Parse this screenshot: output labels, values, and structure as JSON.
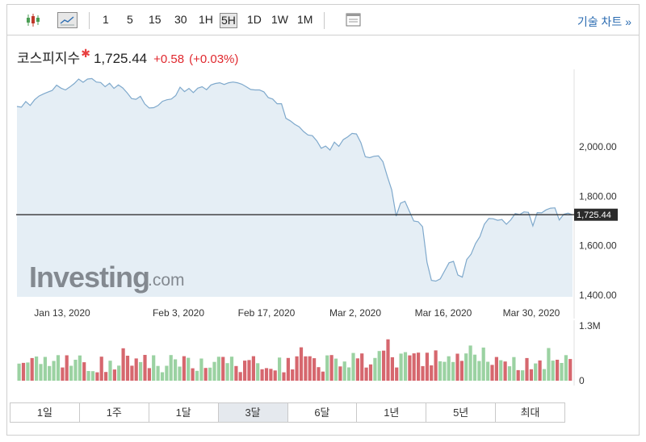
{
  "toolbar": {
    "candle_icon": "candlestick-icon",
    "line_icon": "line-chart-icon",
    "intervals": [
      "1",
      "5",
      "15",
      "30",
      "1H",
      "5H",
      "1D",
      "1W",
      "1M"
    ],
    "active_interval": "5H",
    "layout_icon": "window-icon",
    "tech_chart_link": "기술 차트 »"
  },
  "header": {
    "index_name": "코스피지수",
    "price": "1,725.44",
    "change": "+0.58",
    "change_pct": "(+0.03%)",
    "change_color": "#e0282e"
  },
  "chart_data": {
    "type": "area",
    "x_tick_labels": [
      "Jan 13, 2020",
      "Feb 3, 2020",
      "Feb 17, 2020",
      "Mar 2, 2020",
      "Mar 16, 2020",
      "Mar 30, 2020"
    ],
    "y_tick_labels": [
      "2,000.00",
      "1,800.00",
      "1,600.00",
      "1,400.00"
    ],
    "y_ticks": [
      2000,
      1800,
      1600,
      1400
    ],
    "ylim": [
      1400,
      2310
    ],
    "current_value": 1725.44,
    "current_label": "1,725.44",
    "series": [
      {
        "values": [
          2163,
          2160,
          2183,
          2167,
          2190,
          2205,
          2214,
          2221,
          2228,
          2249,
          2237,
          2230,
          2242,
          2256,
          2274,
          2261,
          2274,
          2276,
          2262,
          2260,
          2243,
          2257,
          2236,
          2250,
          2238,
          2218,
          2195,
          2192,
          2204,
          2173,
          2157,
          2158,
          2167,
          2184,
          2190,
          2193,
          2207,
          2241,
          2223,
          2236,
          2219,
          2237,
          2243,
          2231,
          2250,
          2256,
          2259,
          2252,
          2259,
          2262,
          2259,
          2253,
          2243,
          2232,
          2230,
          2230,
          2222,
          2199,
          2193,
          2174,
          2174,
          2115,
          2105,
          2091,
          2081,
          2062,
          2048,
          2045,
          2024,
          1994,
          2003,
          1987,
          2019,
          2002,
          2029,
          2040,
          2054,
          2052,
          2017,
          1960,
          1956,
          1962,
          1963,
          1940,
          1880,
          1826,
          1720,
          1772,
          1780,
          1739,
          1700,
          1697,
          1677,
          1533,
          1460,
          1457,
          1466,
          1499,
          1531,
          1537,
          1482,
          1473,
          1544,
          1566,
          1609,
          1637,
          1687,
          1710,
          1709,
          1703,
          1706,
          1687,
          1705,
          1730,
          1726,
          1737,
          1735,
          1680,
          1734,
          1733,
          1745,
          1752,
          1753,
          1704,
          1727,
          1732,
          1725
        ]
      }
    ],
    "volume": {
      "axis_labels": [
        "1.3M",
        "0"
      ],
      "up_color": "#9bd2a2",
      "down_color": "#d6676e"
    },
    "area_fill": "#e5eef5",
    "line_color": "#7fa9cc"
  },
  "watermark": {
    "brand": "Investing",
    "suffix": ".com"
  },
  "timeframes": [
    "1일",
    "1주",
    "1달",
    "3달",
    "6달",
    "1년",
    "5년",
    "최대"
  ],
  "active_timeframe": "3달"
}
